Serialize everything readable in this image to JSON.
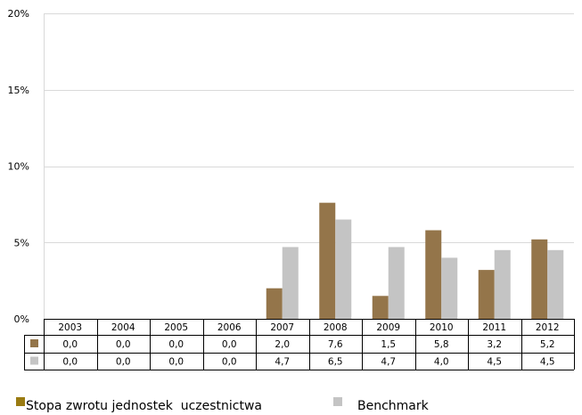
{
  "chart_data": {
    "type": "bar",
    "title": "",
    "xlabel": "",
    "ylabel": "",
    "categories": [
      "2003",
      "2004",
      "2005",
      "2006",
      "2007",
      "2008",
      "2009",
      "2010",
      "2011",
      "2012"
    ],
    "series": [
      {
        "name": "Stopa zwrotu jednostek  uczestnictwa",
        "color": "#94754a",
        "values": [
          0.0,
          0.0,
          0.0,
          0.0,
          2.0,
          7.6,
          1.5,
          5.8,
          3.2,
          5.2
        ],
        "labels": [
          "0,0",
          "0,0",
          "0,0",
          "0,0",
          "2,0",
          "7,6",
          "1,5",
          "5,8",
          "3,2",
          "5,2"
        ]
      },
      {
        "name": "Benchmark",
        "color": "#c4c4c4",
        "values": [
          0.0,
          0.0,
          0.0,
          0.0,
          4.7,
          6.5,
          4.7,
          4.0,
          4.5,
          4.5
        ],
        "labels": [
          "0,0",
          "0,0",
          "0,0",
          "0,0",
          "4,7",
          "6,5",
          "4,7",
          "4,0",
          "4,5",
          "4,5"
        ]
      }
    ],
    "yticks": [
      0,
      5,
      10,
      15,
      20
    ],
    "ytick_labels": [
      "0%",
      "5%",
      "10%",
      "15%",
      "20%"
    ],
    "ylim": [
      0,
      20
    ],
    "grid": true,
    "data_table": true,
    "legend": "bottom-left",
    "legend_marker_colors": [
      "#9a7b12",
      "#c4c4c4"
    ]
  }
}
